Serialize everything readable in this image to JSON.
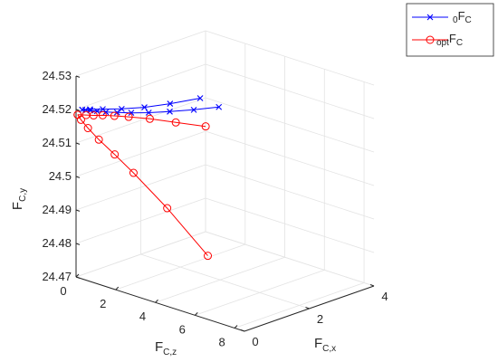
{
  "chart_data": {
    "type": "line",
    "view": "3d",
    "title": "",
    "axes": {
      "x": {
        "label_main": "F",
        "label_sub": "C,x",
        "range": [
          0,
          4
        ],
        "ticks": [
          "0",
          "2",
          "4"
        ]
      },
      "y": {
        "label_main": "F",
        "label_sub": "C,y",
        "range": [
          24.47,
          24.53
        ],
        "ticks": [
          "24.47",
          "24.48",
          "24.49",
          "24.5",
          "24.51",
          "24.52",
          "24.53"
        ]
      },
      "z": {
        "label_main": "F",
        "label_sub": "C,z",
        "range": [
          0,
          8.5
        ],
        "ticks": [
          "0",
          "2",
          "4",
          "6",
          "8"
        ]
      }
    },
    "grid": true,
    "legend_position": "top-right",
    "series": [
      {
        "legend_sub": "0",
        "legend_main": "F",
        "legend_sub2": "C",
        "color": "#0000ff",
        "marker": "x",
        "branches": [
          {
            "x": [
              0.8,
              0.7,
              0.6,
              0.5,
              0.42,
              0.35,
              0.28,
              0.22,
              0.17,
              0.12,
              0.08
            ],
            "y": [
              24.5293,
              24.5267,
              24.5245,
              24.5228,
              24.5216,
              24.5208,
              24.5203,
              24.5201,
              24.52,
              24.52,
              24.52
            ],
            "z": [
              5.9,
              4.8,
              3.75,
              2.85,
              2.1,
              1.5,
              1.05,
              0.7,
              0.45,
              0.28,
              0.18
            ]
          },
          {
            "x": [
              0.08,
              0.28,
              0.55,
              0.95,
              1.5,
              2.2,
              3.1
            ],
            "y": [
              24.52,
              24.5196,
              24.5191,
              24.5184,
              24.5175,
              24.5165,
              24.5152
            ],
            "z": [
              0.18,
              0.25,
              0.45,
              0.75,
              1.0,
              1.15,
              1.2
            ]
          }
        ]
      },
      {
        "legend_sub": "opt",
        "legend_main": "F",
        "legend_sub2": "C",
        "color": "#ff0000",
        "marker": "o",
        "branches": [
          {
            "x": [
              0.0,
              0.25,
              0.45,
              0.7,
              1.0,
              1.35,
              1.85,
              2.5,
              3.3
            ],
            "y": [
              24.5186,
              24.5177,
              24.517,
              24.5163,
              24.5153,
              24.5141,
              24.5123,
              24.5095,
              24.506
            ],
            "z": [
              0.08,
              0.1,
              0.15,
              0.2,
              0.3,
              0.45,
              0.7,
              0.95,
              1.15
            ]
          },
          {
            "x": [
              0.0,
              0.0,
              0.0,
              0.0,
              0.0,
              0.0,
              0.0,
              0.0
            ],
            "y": [
              24.5186,
              24.5174,
              24.5156,
              24.5132,
              24.5103,
              24.5066,
              24.4993,
              24.489
            ],
            "z": [
              0.08,
              0.25,
              0.6,
              1.15,
              1.95,
              2.9,
              4.6,
              6.65
            ]
          }
        ]
      }
    ]
  }
}
